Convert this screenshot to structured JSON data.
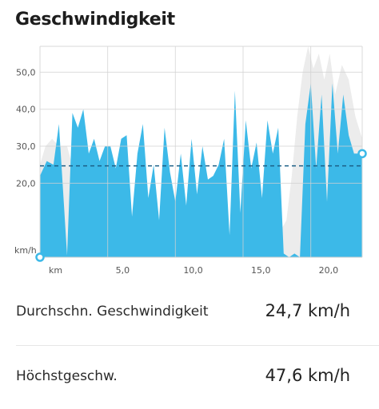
{
  "header": {
    "title": "Geschwindigkeit"
  },
  "chart_data": {
    "type": "area",
    "title": "Geschwindigkeit",
    "ylabel": "km/h",
    "xlabel": "km",
    "xlim": [
      0,
      23.8
    ],
    "ylim": [
      0,
      57
    ],
    "x_ticks": [
      {
        "value": 5,
        "label": "5,0"
      },
      {
        "value": 10,
        "label": "10,0"
      },
      {
        "value": 15,
        "label": "15,0"
      },
      {
        "value": 20,
        "label": "20,0"
      }
    ],
    "y_ticks": [
      {
        "value": 20,
        "label": "20,0"
      },
      {
        "value": 30,
        "label": "30,0"
      },
      {
        "value": 40,
        "label": "40,0"
      },
      {
        "value": 50,
        "label": "50,0"
      }
    ],
    "grid": true,
    "average_line": 24.7,
    "colors": {
      "speed": "#3cb9e8",
      "elevation": "#ececec",
      "average": "#1b5f86"
    },
    "series": [
      {
        "name": "speed",
        "x": [
          0,
          0.5,
          1.0,
          1.4,
          2.0,
          2.4,
          2.8,
          3.2,
          3.6,
          4.0,
          4.4,
          4.8,
          5.2,
          5.6,
          6.0,
          6.4,
          6.8,
          7.2,
          7.6,
          8.0,
          8.4,
          8.8,
          9.2,
          9.6,
          10.0,
          10.4,
          10.8,
          11.2,
          11.6,
          12.0,
          12.4,
          12.8,
          13.2,
          13.6,
          14.0,
          14.4,
          14.8,
          15.2,
          15.6,
          16.0,
          16.4,
          16.8,
          17.2,
          17.6,
          18.0,
          18.4,
          18.8,
          19.2,
          19.6,
          20.0,
          20.4,
          20.8,
          21.2,
          21.6,
          22.0,
          22.4,
          22.8,
          23.2,
          23.8
        ],
        "y": [
          22,
          26,
          25,
          36,
          0.5,
          39,
          35,
          40,
          28,
          32,
          26,
          30,
          30,
          24,
          32,
          33,
          11,
          28,
          36,
          16,
          25,
          10,
          35,
          23,
          15,
          28,
          14,
          32,
          17,
          30,
          21,
          22,
          25,
          32,
          6,
          45,
          12,
          37,
          24,
          31,
          16,
          37,
          28,
          35,
          1,
          0,
          1,
          0,
          36,
          47,
          24,
          44,
          15,
          47,
          28,
          44,
          33,
          28,
          28
        ]
      },
      {
        "name": "elevation",
        "x": [
          0,
          0.4,
          0.9,
          1.4,
          2.0,
          2.6,
          3.2,
          3.8,
          4.4,
          5.0,
          6.0,
          7.0,
          8.0,
          9.0,
          10.0,
          11.0,
          12.0,
          13.0,
          14.0,
          15.0,
          16.0,
          17.0,
          17.6,
          18.2,
          18.6,
          19.0,
          19.4,
          19.8,
          20.2,
          20.6,
          21.0,
          21.4,
          21.8,
          22.3,
          22.8,
          23.3,
          23.8
        ],
        "y": [
          25,
          30,
          32,
          30,
          30,
          22,
          12,
          7,
          5,
          4,
          3,
          3,
          3,
          3,
          3,
          3,
          3,
          3,
          3,
          3,
          3,
          3,
          6,
          10,
          22,
          38,
          50,
          57,
          51,
          55,
          48,
          55,
          44,
          52,
          48,
          38,
          32
        ]
      }
    ]
  },
  "stats": [
    {
      "label": "Durchschn. Geschwindigkeit",
      "value": "24,7 km/h"
    },
    {
      "label": "Höchstgeschw.",
      "value": "47,6 km/h"
    }
  ]
}
